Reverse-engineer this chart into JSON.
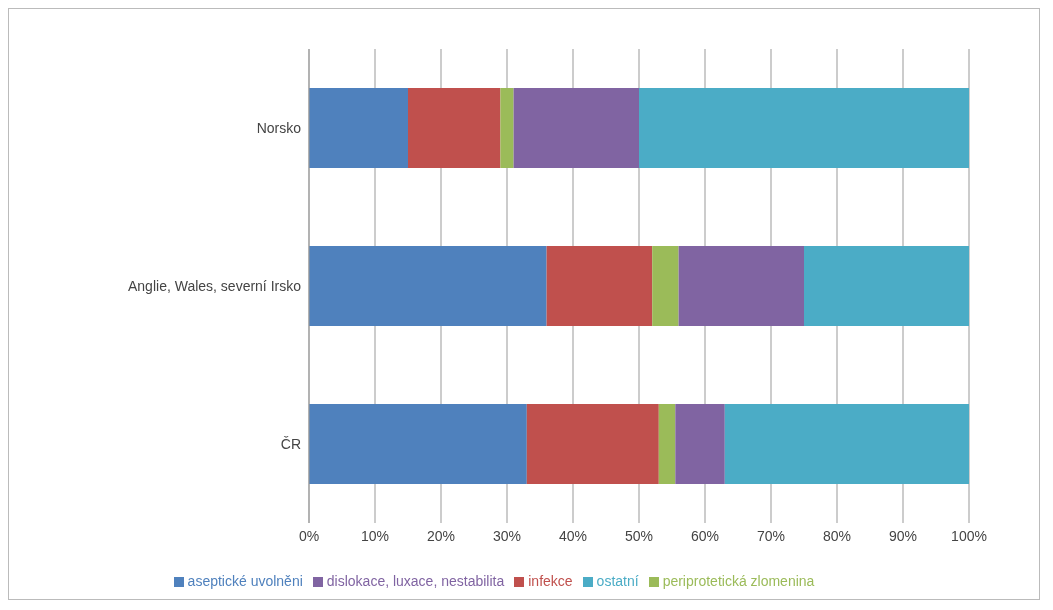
{
  "chart_data": {
    "type": "bar",
    "orientation": "horizontal",
    "stacked": true,
    "categories": [
      "Norsko",
      "Anglie, Wales, severní Irsko",
      "ČR"
    ],
    "series": [
      {
        "name": "aseptické uvolněni",
        "color": "#4f81bd",
        "values": [
          15,
          36,
          33
        ]
      },
      {
        "name": "infekce",
        "color": "#c0504d",
        "values": [
          14,
          16,
          20
        ]
      },
      {
        "name": "periprotetická zlomenina",
        "color": "#9bbb59",
        "values": [
          2,
          4,
          2.5
        ]
      },
      {
        "name": "dislokace, luxace, nestabilita",
        "color": "#8064a2",
        "values": [
          19,
          19,
          7.5
        ]
      },
      {
        "name": "ostatní",
        "color": "#4bacc6",
        "values": [
          50,
          25,
          37
        ]
      }
    ],
    "xlim": [
      0,
      100
    ],
    "xticks": [
      {
        "value": 0,
        "label": "0%"
      },
      {
        "value": 10,
        "label": "10%"
      },
      {
        "value": 20,
        "label": "20%"
      },
      {
        "value": 30,
        "label": "30%"
      },
      {
        "value": 40,
        "label": "40%"
      },
      {
        "value": 50,
        "label": "50%"
      },
      {
        "value": 60,
        "label": "60%"
      },
      {
        "value": 70,
        "label": "70%"
      },
      {
        "value": 80,
        "label": "80%"
      },
      {
        "value": 90,
        "label": "90%"
      },
      {
        "value": 100,
        "label": "100%"
      }
    ],
    "grid": "x",
    "legend": "bottom"
  }
}
